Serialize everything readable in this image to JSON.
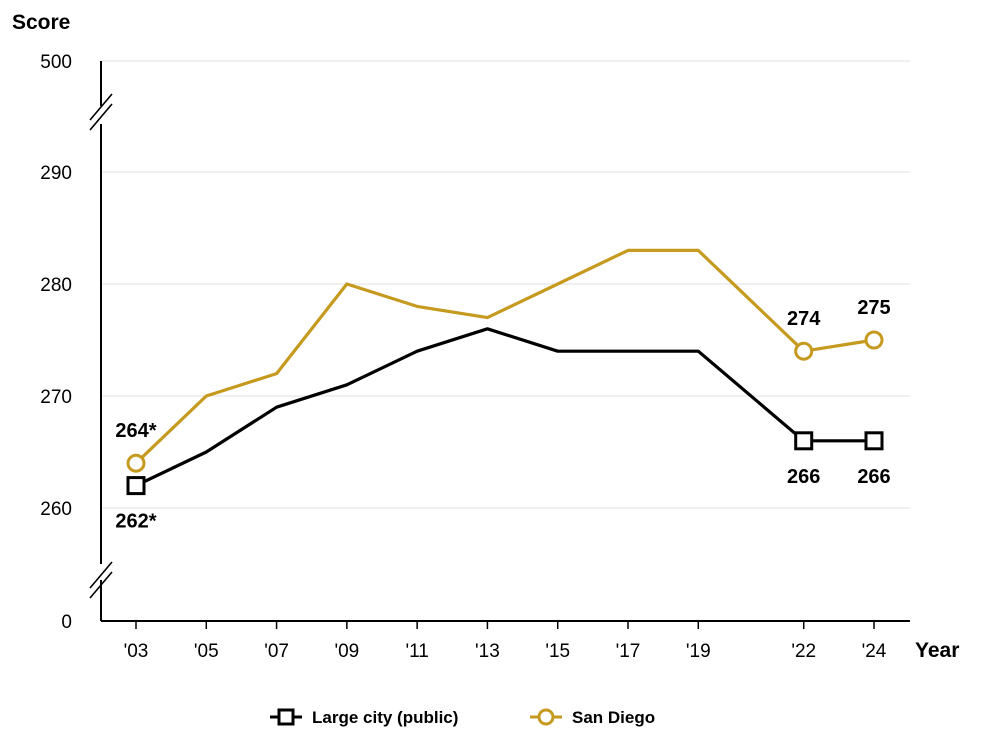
{
  "chart_data": {
    "type": "line",
    "ylabel": "Score",
    "xlabel": "Year",
    "x": [
      2003,
      2005,
      2007,
      2009,
      2011,
      2013,
      2015,
      2017,
      2019,
      2022,
      2024
    ],
    "x_tick_labels": [
      "'03",
      "'05",
      "'07",
      "'09",
      "'11",
      "'13",
      "'15",
      "'17",
      "'19",
      "'22",
      "'24"
    ],
    "y_ticks": [
      0,
      260,
      270,
      280,
      290,
      500
    ],
    "y_tick_labels": [
      "0",
      "260",
      "270",
      "280",
      "290",
      "500"
    ],
    "ylim": [
      255,
      295
    ],
    "y_axis_breaks": [
      0,
      500
    ],
    "grid": true,
    "legend_position": "bottom-center",
    "series": [
      {
        "name": "Large city (public)",
        "color": "#000000",
        "marker": "square",
        "values": [
          262,
          265,
          269,
          271,
          274,
          276,
          274,
          274,
          274,
          266,
          266
        ],
        "labels": [
          {
            "index": 0,
            "text": "262*",
            "position": "below"
          },
          {
            "index": 9,
            "text": "266",
            "position": "below"
          },
          {
            "index": 10,
            "text": "266",
            "position": "below"
          }
        ]
      },
      {
        "name": "San Diego",
        "color": "#C59A1F",
        "marker": "circle",
        "values": [
          264,
          270,
          272,
          280,
          278,
          277,
          280,
          283,
          283,
          274,
          275
        ],
        "labels": [
          {
            "index": 0,
            "text": "264*",
            "position": "above"
          },
          {
            "index": 9,
            "text": "274",
            "position": "above"
          },
          {
            "index": 10,
            "text": "275",
            "position": "above"
          }
        ]
      }
    ]
  }
}
